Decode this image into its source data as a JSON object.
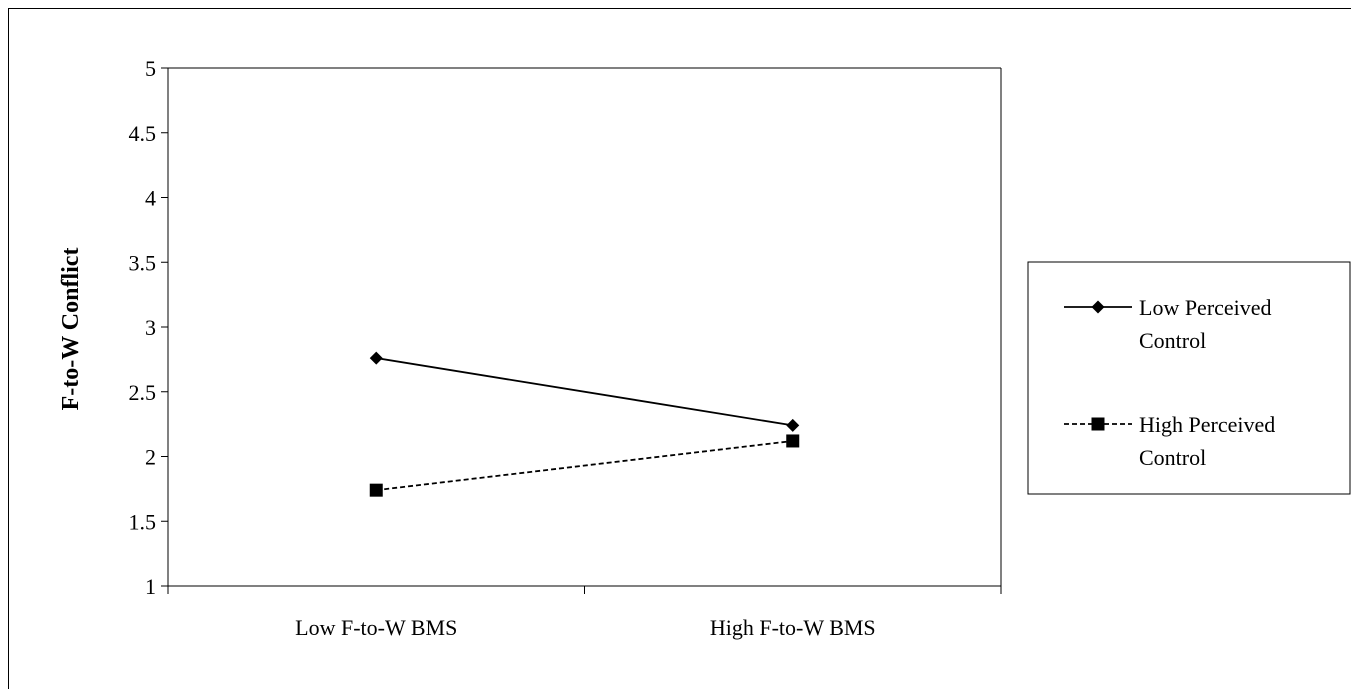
{
  "chart_data": {
    "type": "line",
    "title": "",
    "xlabel": "",
    "ylabel": "F-to-W Conflict",
    "categories": [
      "Low F-to-W BMS",
      "High F-to-W BMS"
    ],
    "ylim": [
      1,
      5
    ],
    "yticks": [
      "1",
      "1.5",
      "2",
      "2.5",
      "3",
      "3.5",
      "4",
      "4.5",
      "5"
    ],
    "grid": false,
    "legend_position": "right",
    "series": [
      {
        "name": "Low Perceived Control",
        "name_lines": [
          "Low Perceived",
          "Control"
        ],
        "values": [
          2.76,
          2.24
        ],
        "line_style": "solid",
        "marker": "diamond",
        "color": "#000000"
      },
      {
        "name": "High Perceived Control",
        "name_lines": [
          "High Perceived",
          "Control"
        ],
        "values": [
          1.74,
          2.12
        ],
        "line_style": "dashed",
        "marker": "square",
        "color": "#000000"
      }
    ]
  }
}
